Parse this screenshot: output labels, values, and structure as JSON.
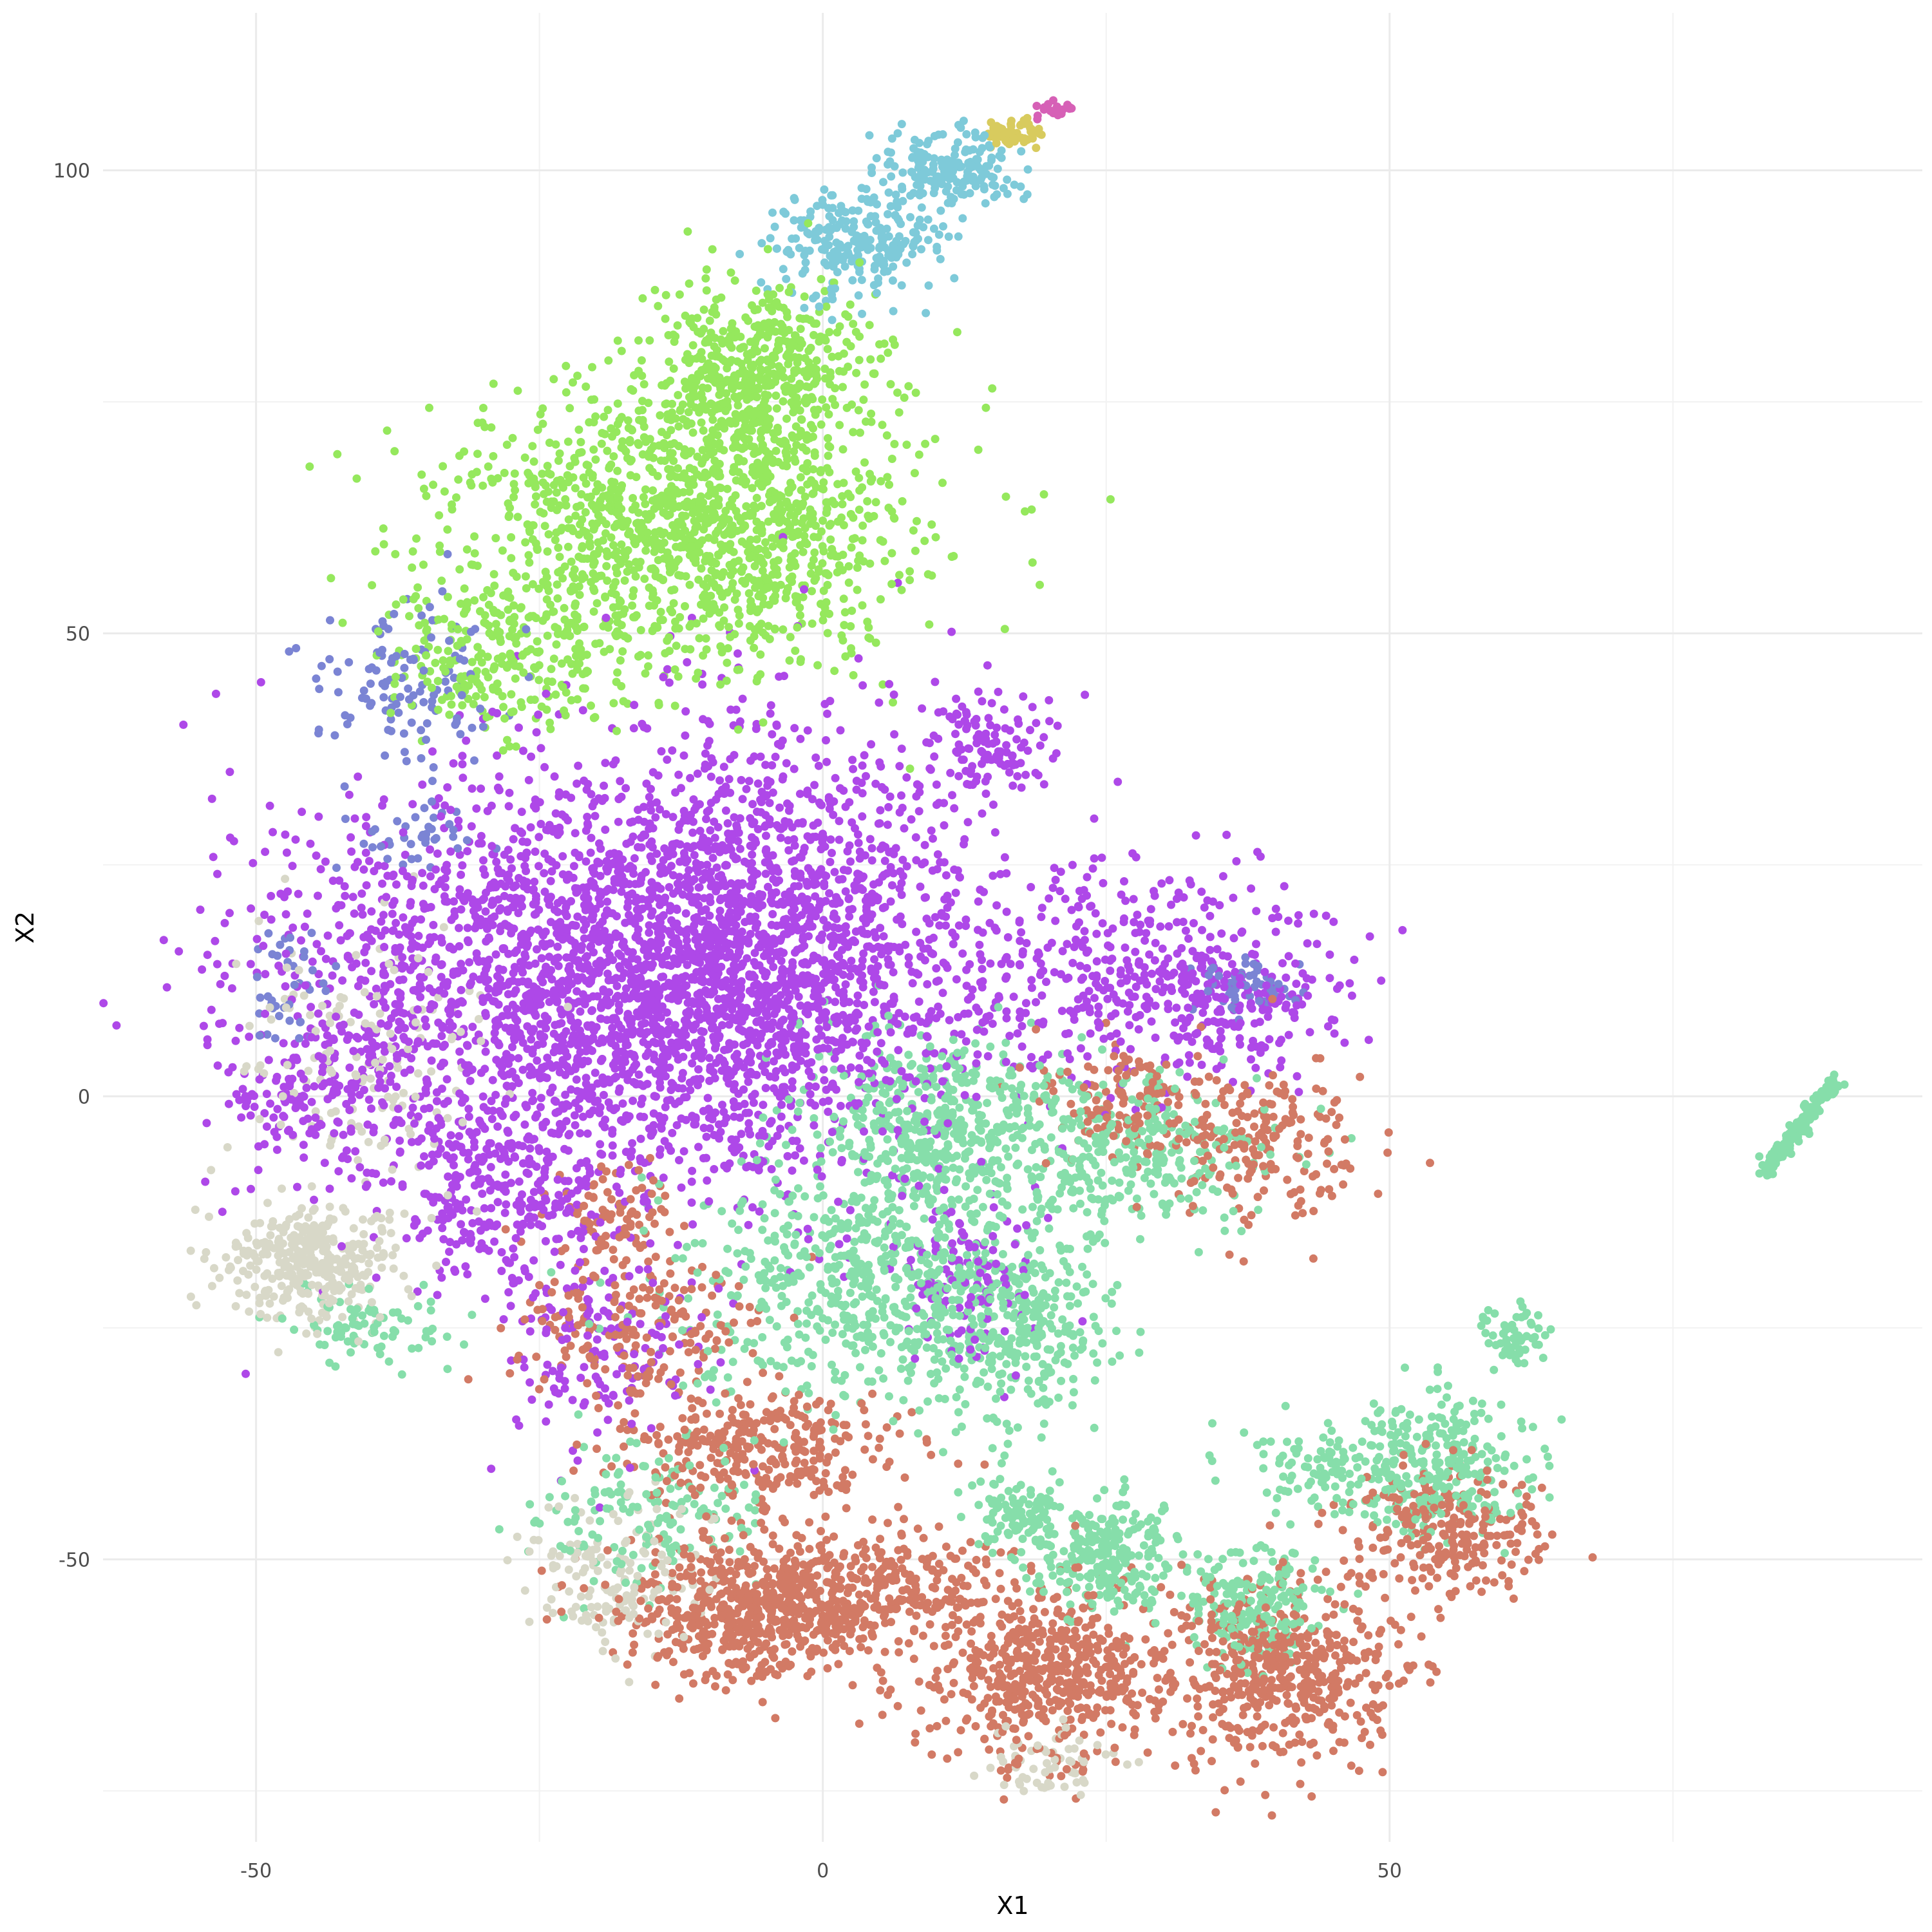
{
  "chart_data": {
    "type": "scatter",
    "xlabel": "X1",
    "ylabel": "X2",
    "xlim": [
      -63.5,
      97
    ],
    "ylim": [
      -80.5,
      117
    ],
    "x_ticks": [
      -50,
      0,
      50
    ],
    "x_tick_labels": [
      "-50",
      "0",
      "50"
    ],
    "y_ticks": [
      -50,
      0,
      50,
      100
    ],
    "y_tick_labels": [
      "-50",
      "0",
      "50",
      "100"
    ],
    "x_minor": [
      -75,
      -25,
      25,
      75
    ],
    "y_minor": [
      -75,
      -25,
      25,
      75
    ],
    "grid": true,
    "legend": "none",
    "colors": {
      "purple": "#AE48E8",
      "mint": "#86DEAA",
      "salmon": "#D27A65",
      "lime": "#95E85D",
      "sky": "#7ECAD9",
      "beige": "#D8D8C8",
      "slate": "#7B84D4",
      "olive": "#D8CB5E",
      "pink": "#D660B6"
    },
    "clusters": [
      {
        "color": "purple",
        "cx": -20,
        "cy": 12,
        "sx": 14,
        "sy": 11,
        "n": 2400
      },
      {
        "color": "purple",
        "cx": -5,
        "cy": 18,
        "sx": 9,
        "sy": 12,
        "n": 1200
      },
      {
        "color": "purple",
        "cx": 25,
        "cy": 15,
        "sx": 9,
        "sy": 6,
        "n": 350
      },
      {
        "color": "purple",
        "cx": 35,
        "cy": 10,
        "sx": 6,
        "sy": 4,
        "n": 200
      },
      {
        "color": "purple",
        "cx": 14,
        "cy": 38,
        "sx": 3,
        "sy": 3,
        "n": 120
      },
      {
        "color": "purple",
        "cx": -45,
        "cy": 0,
        "sx": 4,
        "sy": 4,
        "n": 150
      },
      {
        "color": "purple",
        "cx": -28,
        "cy": -10,
        "sx": 5,
        "sy": 5,
        "n": 250
      },
      {
        "color": "purple",
        "cx": 13,
        "cy": -20,
        "sx": 3,
        "sy": 5,
        "n": 120
      },
      {
        "color": "purple",
        "cx": -20,
        "cy": -28,
        "sx": 5,
        "sy": 6,
        "n": 150
      },
      {
        "color": "lime",
        "cx": -12,
        "cy": 62,
        "sx": 10,
        "sy": 8,
        "n": 1400
      },
      {
        "color": "lime",
        "cx": -6,
        "cy": 78,
        "sx": 5,
        "sy": 5,
        "n": 500
      },
      {
        "color": "lime",
        "cx": -28,
        "cy": 48,
        "sx": 5,
        "sy": 4,
        "n": 250
      },
      {
        "color": "sky",
        "cx": 3,
        "cy": 92,
        "sx": 4,
        "sy": 3,
        "n": 250
      },
      {
        "color": "sky",
        "cx": 11,
        "cy": 100,
        "sx": 3,
        "sy": 2,
        "n": 180
      },
      {
        "color": "olive",
        "cx": 17,
        "cy": 104,
        "sx": 1.2,
        "sy": 0.8,
        "n": 60
      },
      {
        "color": "pink",
        "cx": 20.5,
        "cy": 106.5,
        "sx": 0.8,
        "sy": 0.6,
        "n": 25
      },
      {
        "color": "mint",
        "cx": 5,
        "cy": -20,
        "sx": 9,
        "sy": 7,
        "n": 700
      },
      {
        "color": "mint",
        "cx": 10,
        "cy": -3,
        "sx": 6,
        "sy": 5,
        "n": 450
      },
      {
        "color": "mint",
        "cx": 27,
        "cy": -6,
        "sx": 6,
        "sy": 4,
        "n": 300
      },
      {
        "color": "mint",
        "cx": 17,
        "cy": -25,
        "sx": 4,
        "sy": 5,
        "n": 250
      },
      {
        "color": "mint",
        "cx": 25,
        "cy": -50,
        "sx": 3,
        "sy": 3,
        "n": 250
      },
      {
        "color": "mint",
        "cx": 38,
        "cy": -55,
        "sx": 3,
        "sy": 3,
        "n": 200
      },
      {
        "color": "mint",
        "cx": 55,
        "cy": -40,
        "sx": 3.5,
        "sy": 4,
        "n": 250
      },
      {
        "color": "mint",
        "cx": 17,
        "cy": -45,
        "sx": 2,
        "sy": 2,
        "n": 100
      },
      {
        "color": "mint",
        "cx": -15,
        "cy": -45,
        "sx": 5,
        "sy": 4,
        "n": 150
      },
      {
        "color": "mint",
        "cx": 45,
        "cy": -40,
        "sx": 4,
        "sy": 3,
        "n": 120
      },
      {
        "color": "mint",
        "cx": 61,
        "cy": -26,
        "sx": 1.5,
        "sy": 1.5,
        "n": 60
      },
      {
        "color": "mint",
        "cx": -40,
        "cy": -25,
        "sx": 4,
        "sy": 2,
        "n": 80
      },
      {
        "color": "salmon",
        "cx": -5,
        "cy": -55,
        "sx": 6,
        "sy": 4,
        "n": 700
      },
      {
        "color": "salmon",
        "cx": 20,
        "cy": -62,
        "sx": 5,
        "sy": 5,
        "n": 550
      },
      {
        "color": "salmon",
        "cx": 41,
        "cy": -62,
        "sx": 5,
        "sy": 5,
        "n": 500
      },
      {
        "color": "salmon",
        "cx": 55,
        "cy": -47,
        "sx": 4,
        "sy": 3.5,
        "n": 250
      },
      {
        "color": "salmon",
        "cx": -5,
        "cy": -38,
        "sx": 6,
        "sy": 3,
        "n": 300
      },
      {
        "color": "salmon",
        "cx": -17,
        "cy": -25,
        "sx": 5,
        "sy": 4,
        "n": 200
      },
      {
        "color": "salmon",
        "cx": 38,
        "cy": -5,
        "sx": 5,
        "sy": 4,
        "n": 200
      },
      {
        "color": "salmon",
        "cx": 27,
        "cy": 0,
        "sx": 4,
        "sy": 3,
        "n": 120
      },
      {
        "color": "salmon",
        "cx": -18,
        "cy": -12,
        "sx": 3,
        "sy": 3,
        "n": 80
      },
      {
        "color": "salmon",
        "cx": 7,
        "cy": -52,
        "sx": 4,
        "sy": 3,
        "n": 150
      },
      {
        "color": "beige",
        "cx": -45,
        "cy": -18,
        "sx": 4,
        "sy": 3,
        "n": 350
      },
      {
        "color": "beige",
        "cx": -18,
        "cy": -52,
        "sx": 4,
        "sy": 4,
        "n": 150
      },
      {
        "color": "beige",
        "cx": -40,
        "cy": 5,
        "sx": 6,
        "sy": 8,
        "n": 150
      },
      {
        "color": "beige",
        "cx": 20,
        "cy": -72,
        "sx": 3,
        "sy": 2,
        "n": 60
      },
      {
        "color": "slate",
        "cx": -37,
        "cy": 45,
        "sx": 4,
        "sy": 4,
        "n": 120
      },
      {
        "color": "slate",
        "cx": 37,
        "cy": 12,
        "sx": 2,
        "sy": 1.5,
        "n": 60
      },
      {
        "color": "slate",
        "cx": -47,
        "cy": 12,
        "sx": 2,
        "sy": 3,
        "n": 40
      },
      {
        "color": "slate",
        "cx": -36,
        "cy": 28,
        "sx": 3,
        "sy": 2,
        "n": 40
      }
    ],
    "strips": [
      {
        "color": "mint",
        "x0": 83,
        "y0": -8.5,
        "x1": 89.5,
        "y1": 2,
        "n": 160,
        "jitter": 0.4
      }
    ]
  }
}
